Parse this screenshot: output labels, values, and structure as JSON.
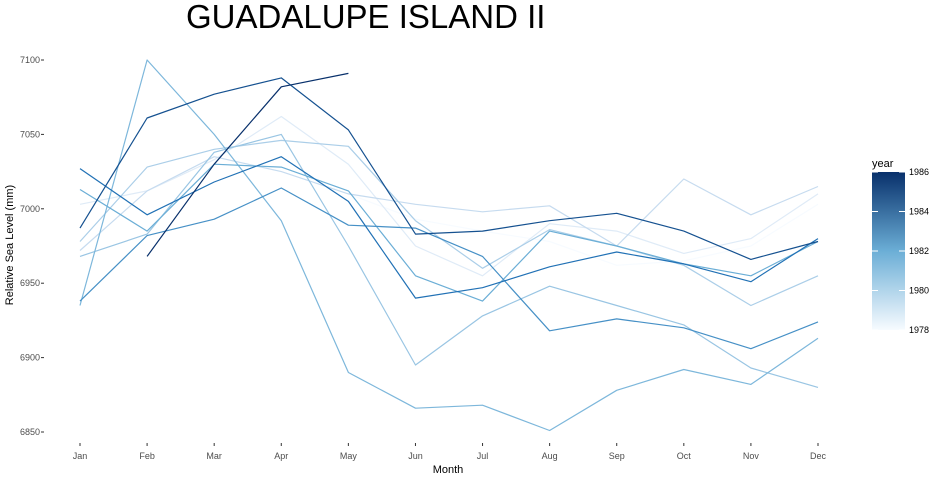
{
  "chart_data": {
    "type": "line",
    "title": "GUADALUPE ISLAND II",
    "xlabel": "Month",
    "ylabel": "Relative Sea Level (mm)",
    "categories": [
      "Jan",
      "Feb",
      "Mar",
      "Apr",
      "May",
      "Jun",
      "Jul",
      "Aug",
      "Sep",
      "Oct",
      "Nov",
      "Dec"
    ],
    "ylim": [
      6842,
      7118
    ],
    "yticks": [
      6850,
      6900,
      6950,
      7000,
      7050,
      7100
    ],
    "grid": false,
    "legend": {
      "title": "year",
      "position": "right",
      "min": 1978,
      "max": 1986,
      "ticks": [
        1978,
        1980,
        1982,
        1984,
        1986
      ],
      "color_low": "#f7fbff",
      "color_high": "#08306b"
    },
    "series": [
      {
        "year": 1978,
        "values": [
          null,
          null,
          null,
          null,
          7010,
          6993,
          6985,
          6978,
          6962,
          6965,
          6975,
          7003
        ]
      },
      {
        "year": 1979,
        "values": [
          7003,
          7012,
          7033,
          7062,
          7030,
          6975,
          6955,
          6990,
          6985,
          6970,
          6980,
          7010
        ]
      },
      {
        "year": 1980,
        "values": [
          6972,
          7012,
          7035,
          7025,
          7010,
          7003,
          6998,
          7002,
          6975,
          7020,
          6996,
          7015
        ]
      },
      {
        "year": 1980.6,
        "values": [
          6978,
          7028,
          7040,
          7046,
          7042,
          6992,
          6960,
          6986,
          6975,
          6962,
          6935,
          6955
        ]
      },
      {
        "year": 1981,
        "values": [
          6968,
          6983,
          7038,
          7050,
          6975,
          6895,
          6928,
          6948,
          6935,
          6922,
          6893,
          6880
        ]
      },
      {
        "year": 1981.6,
        "values": [
          6935,
          7100,
          7050,
          6992,
          6890,
          6866,
          6868,
          6851,
          6878,
          6892,
          6882,
          6913
        ]
      },
      {
        "year": 1982,
        "values": [
          7013,
          6985,
          7030,
          7028,
          7012,
          6955,
          6938,
          6985,
          6975,
          6963,
          6955,
          6978
        ]
      },
      {
        "year": 1983,
        "values": [
          6938,
          6982,
          6993,
          7014,
          6989,
          6987,
          6968,
          6918,
          6926,
          6920,
          6906,
          6924
        ]
      },
      {
        "year": 1984,
        "values": [
          7027,
          6996,
          7018,
          7035,
          7005,
          6940,
          6947,
          6961,
          6971,
          6963,
          6951,
          6980
        ]
      },
      {
        "year": 1985,
        "values": [
          6987,
          7061,
          7077,
          7088,
          7053,
          6983,
          6985,
          6992,
          6997,
          6985,
          6966,
          6978
        ]
      },
      {
        "year": 1986,
        "values": [
          null,
          6968,
          7030,
          7082,
          7091,
          null,
          null,
          null,
          null,
          null,
          null,
          null
        ]
      }
    ]
  }
}
